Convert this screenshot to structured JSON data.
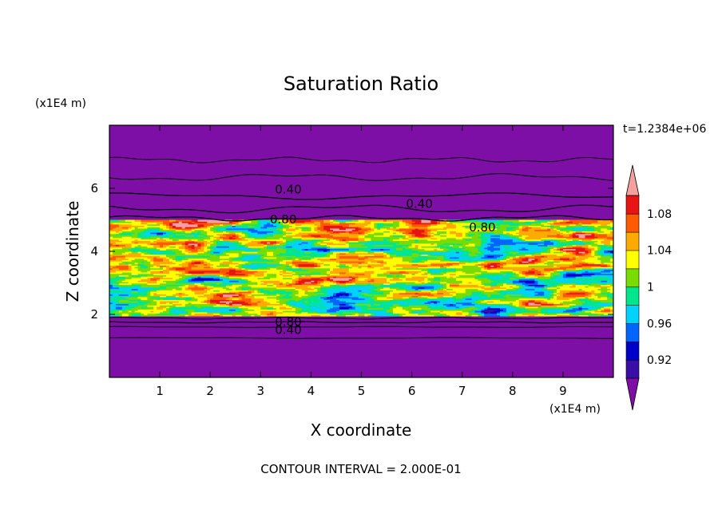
{
  "chart_data": {
    "type": "heatmap",
    "title": "Saturation Ratio",
    "xlabel": "X coordinate",
    "ylabel": "Z coordinate",
    "x_unit": "(x1E4 m)",
    "y_unit": "(x1E4 m)",
    "time_label": "t=1.2384e+06",
    "footer": "CONTOUR INTERVAL = 2.000E-01",
    "xlim": [
      0,
      10
    ],
    "ylim": [
      0,
      8
    ],
    "x_ticks": [
      {
        "value": 1,
        "label": "1"
      },
      {
        "value": 2,
        "label": "2"
      },
      {
        "value": 3,
        "label": "3"
      },
      {
        "value": 4,
        "label": "4"
      },
      {
        "value": 5,
        "label": "5"
      },
      {
        "value": 6,
        "label": "6"
      },
      {
        "value": 7,
        "label": "7"
      },
      {
        "value": 8,
        "label": "8"
      },
      {
        "value": 9,
        "label": "9"
      }
    ],
    "y_ticks": [
      {
        "value": 2,
        "label": "2"
      },
      {
        "value": 4,
        "label": "4"
      },
      {
        "value": 6,
        "label": "6"
      }
    ],
    "colorbar": {
      "levels": [
        0.9,
        0.92,
        0.94,
        0.96,
        0.98,
        1.0,
        1.02,
        1.04,
        1.06,
        1.08,
        1.1
      ],
      "colors": [
        "#7d0fa6",
        "#3a0fa6",
        "#0000c8",
        "#0064ff",
        "#00d2ff",
        "#00e68c",
        "#78dc00",
        "#ffff00",
        "#ffaa00",
        "#ff5a00",
        "#e61414",
        "#f5a0a0"
      ],
      "labels": [
        {
          "value": 0.92,
          "label": "0.92"
        },
        {
          "value": 0.96,
          "label": "0.96"
        },
        {
          "value": 1.0,
          "label": "1"
        },
        {
          "value": 1.04,
          "label": "1.04"
        },
        {
          "value": 1.08,
          "label": "1.08"
        }
      ]
    },
    "contour_labels": [
      {
        "text": "0.40",
        "x": 3.55,
        "z": 5.95
      },
      {
        "text": "0.40",
        "x": 6.15,
        "z": 5.5
      },
      {
        "text": "0.80",
        "x": 3.45,
        "z": 5.0
      },
      {
        "text": "0.80",
        "x": 7.4,
        "z": 4.75
      },
      {
        "text": "0.80",
        "x": 3.55,
        "z": 1.75
      },
      {
        "text": "0.40",
        "x": 3.55,
        "z": 1.5
      }
    ],
    "field": {
      "background_value": 0.89,
      "moist_layer_z": [
        1.95,
        5.0
      ],
      "dry_band_z": [
        1.75,
        1.95
      ]
    }
  }
}
